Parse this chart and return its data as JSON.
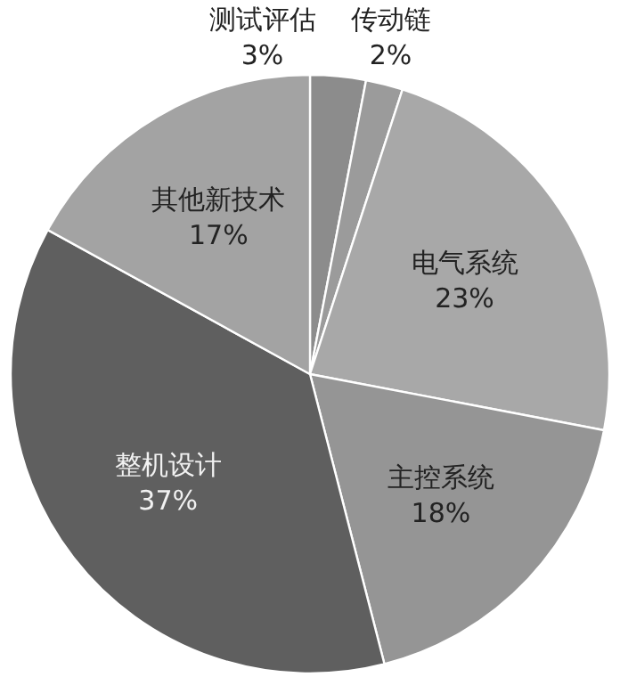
{
  "chart_data": {
    "type": "pie",
    "categories": [
      "测试评估",
      "传动链",
      "电气系统",
      "主控系统",
      "整机设计",
      "其他新技术"
    ],
    "values": [
      3,
      2,
      23,
      18,
      37,
      17
    ],
    "value_labels": [
      "3%",
      "2%",
      "23%",
      "18%",
      "37%",
      "17%"
    ],
    "colors": [
      "#8c8c8c",
      "#9b9b9b",
      "#a8a8a8",
      "#959595",
      "#5f5f5f",
      "#a3a3a3"
    ]
  }
}
